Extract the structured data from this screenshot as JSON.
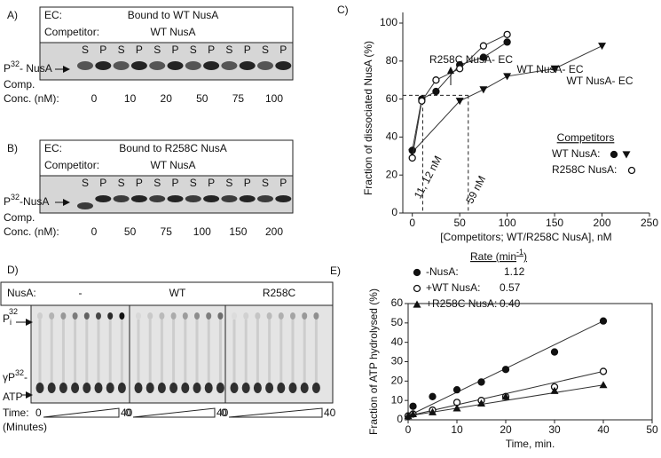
{
  "panels": {
    "A": {
      "label": "A)",
      "ec_label": "EC:",
      "ec": "Bound to WT NusA",
      "competitor_label": "Competitor:",
      "competitor": "WT NusA",
      "lanes": [
        "S",
        "P",
        "S",
        "P",
        "S",
        "P",
        "S",
        "P",
        "S",
        "P",
        "S",
        "P"
      ],
      "band": {
        "base": "P",
        "sup": "32",
        "rest": "- NusA"
      },
      "comp": "Comp.",
      "conc_label": "Conc. (nM):",
      "concs": [
        "0",
        "10",
        "20",
        "50",
        "75",
        "100"
      ]
    },
    "B": {
      "label": "B)",
      "ec_label": "EC:",
      "ec": "Bound to R258C NusA",
      "competitor_label": "Competitor:",
      "competitor": "WT NusA",
      "lanes": [
        "S",
        "P",
        "S",
        "P",
        "S",
        "P",
        "S",
        "P",
        "S",
        "P",
        "S",
        "P"
      ],
      "band": {
        "base": "P",
        "sup": "32",
        "rest": "-NusA"
      },
      "comp": "Comp.",
      "conc_label": "Conc. (nM):",
      "concs": [
        "0",
        "50",
        "75",
        "100",
        "150",
        "200"
      ]
    },
    "D": {
      "label": "D)",
      "nusa_label": "NusA:",
      "groups": [
        "-",
        "WT",
        "R258C"
      ],
      "pi": {
        "base": "P",
        "sub": "i",
        "sup": "32"
      },
      "gamma": {
        "base": "γP",
        "sup": "32",
        "rest": "-"
      },
      "atp": "ATP",
      "time_label": "Time:",
      "time_start": "0",
      "time_end": "40",
      "units": "(Minutes)"
    }
  },
  "chart_data": [
    {
      "type": "scatter",
      "panel_label": "C)",
      "xlabel": "[Competitors; WT/R258C NusA], nM",
      "ylabel": "Fraction of dissociated NusA (%)",
      "xlim": [
        -10,
        250
      ],
      "xticks": [
        0,
        50,
        100,
        150,
        200,
        250
      ],
      "ylim": [
        0,
        100
      ],
      "yticks": [
        0,
        20,
        40,
        60,
        80,
        100
      ],
      "legend_title": "Competitors",
      "series": [
        {
          "name": "WT NusA:",
          "marker": "circle-filled",
          "color": "#111111",
          "x": [
            0,
            10,
            25,
            50,
            75,
            100
          ],
          "values": [
            33,
            60,
            64,
            78,
            82,
            90
          ]
        },
        {
          "marker": "triangle-down",
          "color": "#111111",
          "x": [
            0,
            50,
            75,
            100,
            150,
            200
          ],
          "values": [
            32,
            59,
            65,
            72,
            76,
            88
          ]
        },
        {
          "name": "R258C NusA:",
          "marker": "circle-open",
          "color": "#111111",
          "x": [
            0,
            10,
            25,
            50,
            75,
            100
          ],
          "values": [
            29,
            59,
            70,
            76,
            88,
            94
          ]
        }
      ],
      "annotations": [
        "R258C NusA- EC",
        "WT NusA- EC",
        "WT NusA- EC",
        "11, 12 nM",
        "59 nM"
      ],
      "hlines": [
        62
      ],
      "vlines": [
        11,
        59
      ]
    },
    {
      "type": "scatter",
      "panel_label": "E)",
      "xlabel": "Time, min.",
      "ylabel": "Fraction of ATP hydrolysed (%)",
      "xlim": [
        0,
        50
      ],
      "xticks": [
        0,
        10,
        20,
        30,
        40,
        50
      ],
      "ylim": [
        0,
        60
      ],
      "yticks": [
        0,
        10,
        20,
        30,
        40,
        50,
        60
      ],
      "legend_title": {
        "base": "Rate (min",
        "sup": "-1",
        "rest": ")"
      },
      "series": [
        {
          "name": "-NusA:",
          "rate": "1.12",
          "marker": "circle-filled",
          "color": "#111111",
          "x": [
            0,
            1,
            5,
            10,
            15,
            20,
            30,
            40
          ],
          "values": [
            2,
            7,
            12,
            15.5,
            19.5,
            26,
            35,
            51
          ]
        },
        {
          "name": "+WT NusA:",
          "rate": "0.57",
          "marker": "circle-open",
          "color": "#111111",
          "x": [
            0,
            1,
            5,
            10,
            15,
            20,
            30,
            40
          ],
          "values": [
            2,
            3,
            5,
            9,
            10,
            12,
            17,
            25
          ]
        },
        {
          "name": "+R258C NusA:",
          "rate": "0.40",
          "marker": "triangle-up",
          "color": "#111111",
          "x": [
            0,
            1,
            5,
            10,
            15,
            20,
            30,
            40
          ],
          "values": [
            2,
            3,
            4,
            6,
            8.5,
            12,
            15,
            18
          ]
        }
      ]
    }
  ]
}
